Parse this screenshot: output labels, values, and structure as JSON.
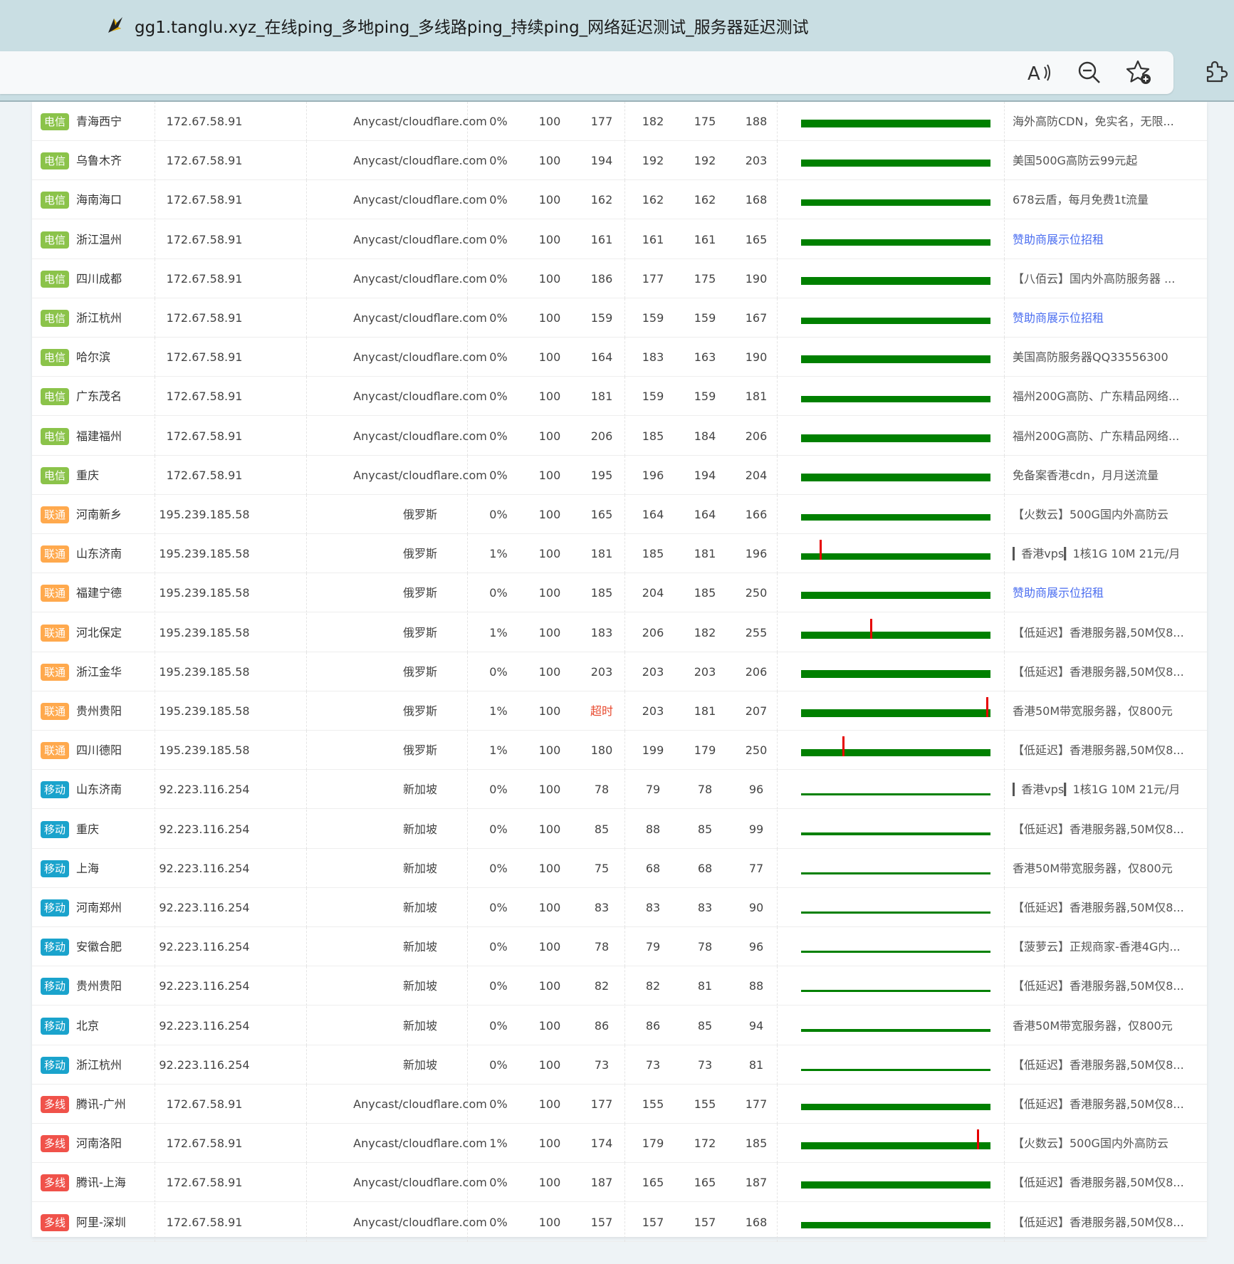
{
  "window": {
    "title": "gg1.tanglu.xyz_在线ping_多地ping_多线路ping_持续ping_网络延迟测试_服务器延迟测试"
  },
  "toolbar_icons": [
    "read-aloud-icon",
    "zoom-out-icon",
    "add-favorite-icon",
    "extensions-icon"
  ],
  "isp_colors": {
    "电信": "#8bc34a",
    "联通": "#ffa94d",
    "移动": "#1aa3cc",
    "多线": "#f0524a"
  },
  "bar_colors": {
    "ok": "#008000",
    "loss": "#e60000"
  },
  "rows": [
    {
      "isp": "电信",
      "loc": "青海西宁",
      "ip": "172.67.58.91",
      "geo": "Anycast/cloudflare.com",
      "loss": "0%",
      "sent": "100",
      "last": "177",
      "avg": "182",
      "min": "175",
      "max": "188",
      "ad": "海外高防CDN，免实名，无限...",
      "ad_link": false,
      "level": 0.7,
      "spike": null
    },
    {
      "isp": "电信",
      "loc": "乌鲁木齐",
      "ip": "172.67.58.91",
      "geo": "Anycast/cloudflare.com",
      "loss": "0%",
      "sent": "100",
      "last": "194",
      "avg": "192",
      "min": "192",
      "max": "203",
      "ad": "美国500G高防云99元起",
      "ad_link": false,
      "level": 0.65,
      "spike": null
    },
    {
      "isp": "电信",
      "loc": "海南海口",
      "ip": "172.67.58.91",
      "geo": "Anycast/cloudflare.com",
      "loss": "0%",
      "sent": "100",
      "last": "162",
      "avg": "162",
      "min": "162",
      "max": "168",
      "ad": "678云盾，每月免费1t流量",
      "ad_link": false,
      "level": 0.55,
      "spike": null
    },
    {
      "isp": "电信",
      "loc": "浙江温州",
      "ip": "172.67.58.91",
      "geo": "Anycast/cloudflare.com",
      "loss": "0%",
      "sent": "100",
      "last": "161",
      "avg": "161",
      "min": "161",
      "max": "165",
      "ad": "赞助商展示位招租",
      "ad_link": true,
      "level": 0.55,
      "spike": null
    },
    {
      "isp": "电信",
      "loc": "四川成都",
      "ip": "172.67.58.91",
      "geo": "Anycast/cloudflare.com",
      "loss": "0%",
      "sent": "100",
      "last": "186",
      "avg": "177",
      "min": "175",
      "max": "190",
      "ad": "【八佰云】国内外高防服务器 ...",
      "ad_link": false,
      "level": 0.68,
      "spike": null
    },
    {
      "isp": "电信",
      "loc": "浙江杭州",
      "ip": "172.67.58.91",
      "geo": "Anycast/cloudflare.com",
      "loss": "0%",
      "sent": "100",
      "last": "159",
      "avg": "159",
      "min": "159",
      "max": "167",
      "ad": "赞助商展示位招租",
      "ad_link": true,
      "level": 0.55,
      "spike": null
    },
    {
      "isp": "电信",
      "loc": "哈尔滨",
      "ip": "172.67.58.91",
      "geo": "Anycast/cloudflare.com",
      "loss": "0%",
      "sent": "100",
      "last": "164",
      "avg": "183",
      "min": "163",
      "max": "190",
      "ad": "美国高防服务器QQ33556300",
      "ad_link": false,
      "level": 0.68,
      "spike": null
    },
    {
      "isp": "电信",
      "loc": "广东茂名",
      "ip": "172.67.58.91",
      "geo": "Anycast/cloudflare.com",
      "loss": "0%",
      "sent": "100",
      "last": "181",
      "avg": "159",
      "min": "159",
      "max": "181",
      "ad": "福州200G高防、广东精品网络...",
      "ad_link": false,
      "level": 0.55,
      "spike": null
    },
    {
      "isp": "电信",
      "loc": "福建福州",
      "ip": "172.67.58.91",
      "geo": "Anycast/cloudflare.com",
      "loss": "0%",
      "sent": "100",
      "last": "206",
      "avg": "185",
      "min": "184",
      "max": "206",
      "ad": "福州200G高防、广东精品网络...",
      "ad_link": false,
      "level": 0.68,
      "spike": null
    },
    {
      "isp": "电信",
      "loc": "重庆",
      "ip": "172.67.58.91",
      "geo": "Anycast/cloudflare.com",
      "loss": "0%",
      "sent": "100",
      "last": "195",
      "avg": "196",
      "min": "194",
      "max": "204",
      "ad": "免备案香港cdn，月月送流量",
      "ad_link": false,
      "level": 0.7,
      "spike": null
    },
    {
      "isp": "联通",
      "loc": "河南新乡",
      "ip": "195.239.185.58",
      "geo": "俄罗斯",
      "loss": "0%",
      "sent": "100",
      "last": "165",
      "avg": "164",
      "min": "164",
      "max": "166",
      "ad": "【火数云】500G国内外高防云",
      "ad_link": false,
      "level": 0.55,
      "spike": null
    },
    {
      "isp": "联通",
      "loc": "山东济南",
      "ip": "195.239.185.58",
      "geo": "俄罗斯",
      "loss": "1%",
      "sent": "100",
      "last": "181",
      "avg": "185",
      "min": "181",
      "max": "196",
      "ad": "▎香港vps▎1核1G 10M 21元/月",
      "ad_link": false,
      "level": 0.55,
      "spike": 0.1
    },
    {
      "isp": "联通",
      "loc": "福建宁德",
      "ip": "195.239.185.58",
      "geo": "俄罗斯",
      "loss": "0%",
      "sent": "100",
      "last": "185",
      "avg": "204",
      "min": "185",
      "max": "250",
      "ad": "赞助商展示位招租",
      "ad_link": true,
      "level": 0.65,
      "spike": null
    },
    {
      "isp": "联通",
      "loc": "河北保定",
      "ip": "195.239.185.58",
      "geo": "俄罗斯",
      "loss": "1%",
      "sent": "100",
      "last": "183",
      "avg": "206",
      "min": "182",
      "max": "255",
      "ad": "【低延迟】香港服务器,50M仅8...",
      "ad_link": false,
      "level": 0.65,
      "spike": 0.37
    },
    {
      "isp": "联通",
      "loc": "浙江金华",
      "ip": "195.239.185.58",
      "geo": "俄罗斯",
      "loss": "0%",
      "sent": "100",
      "last": "203",
      "avg": "203",
      "min": "203",
      "max": "206",
      "ad": "【低延迟】香港服务器,50M仅8...",
      "ad_link": false,
      "level": 0.7,
      "spike": null
    },
    {
      "isp": "联通",
      "loc": "贵州贵阳",
      "ip": "195.239.185.58",
      "geo": "俄罗斯",
      "loss": "1%",
      "sent": "100",
      "last": "超时",
      "avg": "203",
      "min": "181",
      "max": "207",
      "ad": "香港50M带宽服务器，仅800元",
      "ad_link": false,
      "level": 0.7,
      "spike": 0.99
    },
    {
      "isp": "联通",
      "loc": "四川德阳",
      "ip": "195.239.185.58",
      "geo": "俄罗斯",
      "loss": "1%",
      "sent": "100",
      "last": "180",
      "avg": "199",
      "min": "179",
      "max": "250",
      "ad": "【低延迟】香港服务器,50M仅8...",
      "ad_link": false,
      "level": 0.65,
      "spike": 0.22
    },
    {
      "isp": "移动",
      "loc": "山东济南",
      "ip": "92.223.116.254",
      "geo": "新加坡",
      "loss": "0%",
      "sent": "100",
      "last": "78",
      "avg": "79",
      "min": "78",
      "max": "96",
      "ad": "▎香港vps▎1核1G 10M 21元/月",
      "ad_link": false,
      "level": 0.2,
      "spike": null
    },
    {
      "isp": "移动",
      "loc": "重庆",
      "ip": "92.223.116.254",
      "geo": "新加坡",
      "loss": "0%",
      "sent": "100",
      "last": "85",
      "avg": "88",
      "min": "85",
      "max": "99",
      "ad": "【低延迟】香港服务器,50M仅8...",
      "ad_link": false,
      "level": 0.24,
      "spike": null
    },
    {
      "isp": "移动",
      "loc": "上海",
      "ip": "92.223.116.254",
      "geo": "新加坡",
      "loss": "0%",
      "sent": "100",
      "last": "75",
      "avg": "68",
      "min": "68",
      "max": "77",
      "ad": "香港50M带宽服务器，仅800元",
      "ad_link": false,
      "level": 0.18,
      "spike": null
    },
    {
      "isp": "移动",
      "loc": "河南郑州",
      "ip": "92.223.116.254",
      "geo": "新加坡",
      "loss": "0%",
      "sent": "100",
      "last": "83",
      "avg": "83",
      "min": "83",
      "max": "90",
      "ad": "【低延迟】香港服务器,50M仅8...",
      "ad_link": false,
      "level": 0.2,
      "spike": null
    },
    {
      "isp": "移动",
      "loc": "安徽合肥",
      "ip": "92.223.116.254",
      "geo": "新加坡",
      "loss": "0%",
      "sent": "100",
      "last": "78",
      "avg": "79",
      "min": "78",
      "max": "96",
      "ad": "【菠萝云】正规商家-香港4G内...",
      "ad_link": false,
      "level": 0.2,
      "spike": null
    },
    {
      "isp": "移动",
      "loc": "贵州贵阳",
      "ip": "92.223.116.254",
      "geo": "新加坡",
      "loss": "0%",
      "sent": "100",
      "last": "82",
      "avg": "82",
      "min": "81",
      "max": "88",
      "ad": "【低延迟】香港服务器,50M仅8...",
      "ad_link": false,
      "level": 0.2,
      "spike": null
    },
    {
      "isp": "移动",
      "loc": "北京",
      "ip": "92.223.116.254",
      "geo": "新加坡",
      "loss": "0%",
      "sent": "100",
      "last": "86",
      "avg": "86",
      "min": "85",
      "max": "94",
      "ad": "香港50M带宽服务器，仅800元",
      "ad_link": false,
      "level": 0.22,
      "spike": null
    },
    {
      "isp": "移动",
      "loc": "浙江杭州",
      "ip": "92.223.116.254",
      "geo": "新加坡",
      "loss": "0%",
      "sent": "100",
      "last": "73",
      "avg": "73",
      "min": "73",
      "max": "81",
      "ad": "【低延迟】香港服务器,50M仅8...",
      "ad_link": false,
      "level": 0.18,
      "spike": null
    },
    {
      "isp": "多线",
      "loc": "腾讯-广州",
      "ip": "172.67.58.91",
      "geo": "Anycast/cloudflare.com",
      "loss": "0%",
      "sent": "100",
      "last": "177",
      "avg": "155",
      "min": "155",
      "max": "177",
      "ad": "【低延迟】香港服务器,50M仅8...",
      "ad_link": false,
      "level": 0.55,
      "spike": null
    },
    {
      "isp": "多线",
      "loc": "河南洛阳",
      "ip": "172.67.58.91",
      "geo": "Anycast/cloudflare.com",
      "loss": "1%",
      "sent": "100",
      "last": "174",
      "avg": "179",
      "min": "172",
      "max": "185",
      "ad": "【火数云】500G国内外高防云",
      "ad_link": false,
      "level": 0.62,
      "spike": 0.94
    },
    {
      "isp": "多线",
      "loc": "腾讯-上海",
      "ip": "172.67.58.91",
      "geo": "Anycast/cloudflare.com",
      "loss": "0%",
      "sent": "100",
      "last": "187",
      "avg": "165",
      "min": "165",
      "max": "187",
      "ad": "【低延迟】香港服务器,50M仅8...",
      "ad_link": false,
      "level": 0.6,
      "spike": null
    },
    {
      "isp": "多线",
      "loc": "阿里-深圳",
      "ip": "172.67.58.91",
      "geo": "Anycast/cloudflare.com",
      "loss": "0%",
      "sent": "100",
      "last": "157",
      "avg": "157",
      "min": "157",
      "max": "168",
      "ad": "【低延迟】香港服务器,50M仅8...",
      "ad_link": false,
      "level": 0.55,
      "spike": null
    }
  ]
}
